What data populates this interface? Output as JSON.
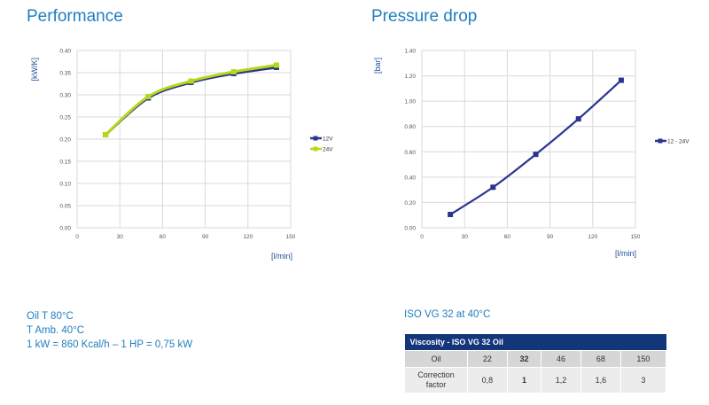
{
  "performance": {
    "title": "Performance"
  },
  "pressure": {
    "title": "Pressure drop"
  },
  "notes": {
    "lines": [
      "Oil T 80°C",
      "T Amb. 40°C",
      "1 kW = 860 Kcal/h – 1 HP = 0,75 kW"
    ],
    "viscosity_note": "ISO VG 32 at 40°C"
  },
  "viscosity_table": {
    "header": "Viscosity - ISO VG 32 Oil",
    "row1": {
      "label": "Oil",
      "values": [
        "22",
        "32",
        "46",
        "68",
        "150"
      ]
    },
    "row2": {
      "label": "Correction factor",
      "values": [
        "0,8",
        "1",
        "1,2",
        "1,6",
        "3"
      ]
    },
    "highlight_index": 1
  },
  "colors": {
    "title": "#1f7fbf",
    "navy": "#2b3590",
    "lime": "#b5d817",
    "table_header": "#13357a"
  },
  "chart_data": [
    {
      "type": "line",
      "title": "Performance",
      "ylabel": "[kW/K]",
      "xlabel": "[l/min]",
      "xlim": [
        0,
        150
      ],
      "ylim": [
        0,
        0.4
      ],
      "xticks": [
        "0",
        "30",
        "60",
        "90",
        "120",
        "150"
      ],
      "yticks": [
        "0.00",
        "0.05",
        "0.10",
        "0.15",
        "0.20",
        "0.25",
        "0.30",
        "0.35",
        "0.40"
      ],
      "grid": true,
      "legend": "right",
      "series": [
        {
          "name": "12V",
          "color": "#2b3590",
          "x": [
            20,
            50,
            80,
            110,
            140
          ],
          "y": [
            0.21,
            0.293,
            0.328,
            0.348,
            0.362
          ]
        },
        {
          "name": "24V",
          "color": "#b5d817",
          "x": [
            20,
            50,
            80,
            110,
            140
          ],
          "y": [
            0.21,
            0.296,
            0.331,
            0.352,
            0.367
          ]
        }
      ]
    },
    {
      "type": "line",
      "title": "Pressure drop",
      "ylabel": "[bar]",
      "xlabel": "[l/min]",
      "xlim": [
        0,
        150
      ],
      "ylim": [
        0,
        1.4
      ],
      "xticks": [
        "0",
        "30",
        "60",
        "90",
        "120",
        "150"
      ],
      "yticks": [
        "0.00",
        "0.20",
        "0.40",
        "0.60",
        "0.80",
        "1.00",
        "1.20",
        "1.40"
      ],
      "grid": true,
      "legend": "right",
      "series": [
        {
          "name": "12 - 24V",
          "color": "#2b3590",
          "x": [
            20,
            50,
            80,
            110,
            140
          ],
          "y": [
            0.105,
            0.32,
            0.58,
            0.86,
            1.165
          ]
        }
      ]
    }
  ]
}
